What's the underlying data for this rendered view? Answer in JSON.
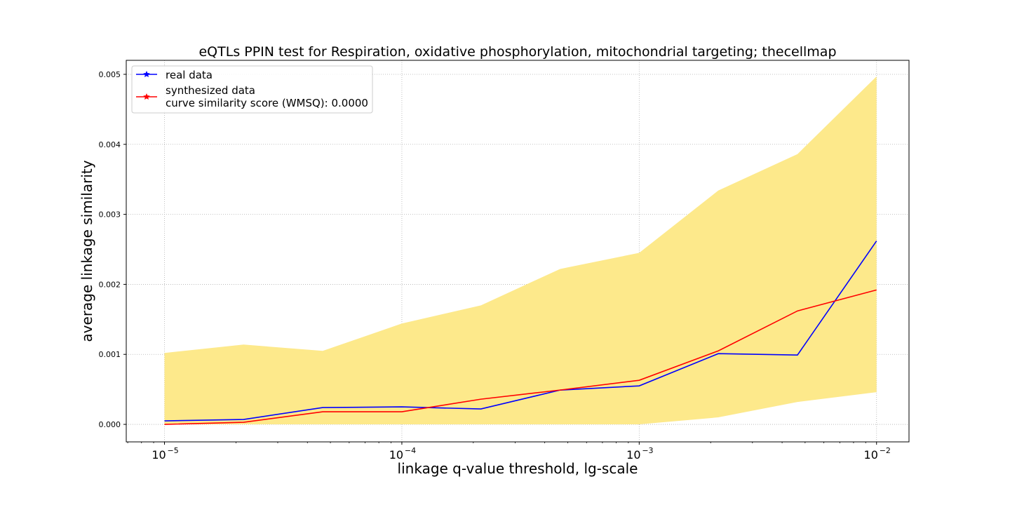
{
  "chart_data": {
    "type": "line",
    "title": "eQTLs PPIN test for Respiration, oxidative phosphorylation, mitochondrial targeting; thecellmap",
    "xlabel": "linkage q-value threshold, lg-scale",
    "ylabel": "average linkage similarity",
    "x_scale": "log",
    "xlim": [
      6.9e-06,
      0.0137
    ],
    "ylim": [
      -0.00025,
      0.0052
    ],
    "grid": true,
    "legend_position": "top-left",
    "x": [
      1e-05,
      2.154e-05,
      4.642e-05,
      0.0001,
      0.0002154,
      0.0004642,
      0.001,
      0.002154,
      0.004642,
      0.01
    ],
    "xticks": [
      {
        "value": 1e-05,
        "base": "10",
        "exp": "−5"
      },
      {
        "value": 0.0001,
        "base": "10",
        "exp": "−4"
      },
      {
        "value": 0.001,
        "base": "10",
        "exp": "−3"
      },
      {
        "value": 0.01,
        "base": "10",
        "exp": "−2"
      }
    ],
    "yticks": [
      {
        "value": 0.0,
        "label": "0.000"
      },
      {
        "value": 0.001,
        "label": "0.001"
      },
      {
        "value": 0.002,
        "label": "0.002"
      },
      {
        "value": 0.003,
        "label": "0.003"
      },
      {
        "value": 0.004,
        "label": "0.004"
      },
      {
        "value": 0.005,
        "label": "0.005"
      }
    ],
    "band": {
      "color": "#fde98b",
      "upper": [
        0.00102,
        0.00114,
        0.00105,
        0.00144,
        0.0017,
        0.00222,
        0.00245,
        0.00334,
        0.00386,
        0.00497
      ],
      "lower": [
        0.0,
        0.0,
        0.0,
        0.0,
        0.0,
        0.0,
        0.0,
        0.0001,
        0.00032,
        0.00046
      ]
    },
    "series": [
      {
        "name": "real data",
        "color": "#0000ff",
        "values": [
          5e-05,
          7e-05,
          0.00024,
          0.00025,
          0.00022,
          0.00049,
          0.00055,
          0.00101,
          0.00099,
          0.00262
        ]
      },
      {
        "name": "synthesized data",
        "name_line2": "curve similarity score (WMSQ): 0.0000",
        "color": "#ff0000",
        "values": [
          0.0,
          3e-05,
          0.00018,
          0.00018,
          0.00036,
          0.00049,
          0.00063,
          0.00105,
          0.00162,
          0.00192
        ]
      }
    ]
  }
}
